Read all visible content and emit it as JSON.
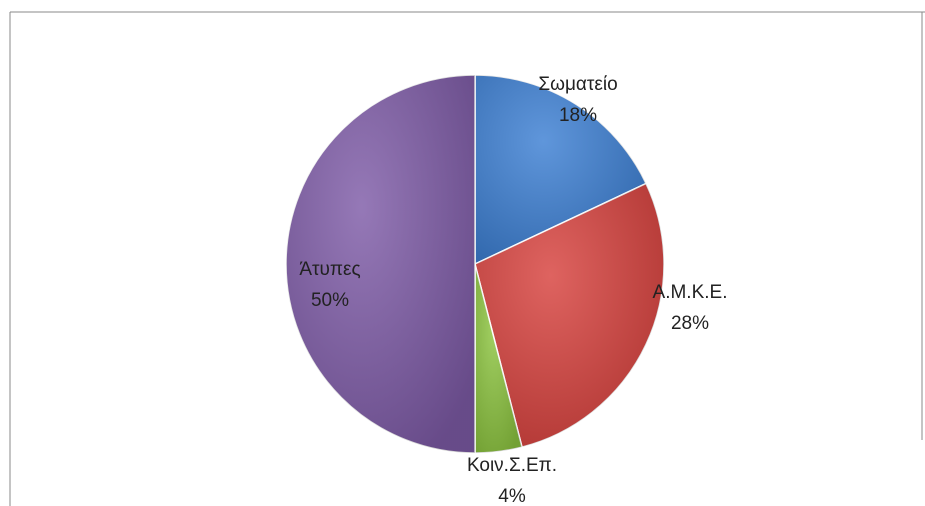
{
  "chart_data": {
    "type": "pie",
    "categories": [
      "Σωματείο",
      "Α.Μ.Κ.Ε.",
      "Κοιν.Σ.Επ.",
      "Άτυπες"
    ],
    "values": [
      18,
      28,
      4,
      50
    ],
    "value_labels": [
      "18%",
      "28%",
      "4%",
      "50%"
    ],
    "colors": [
      "#3c7fd3",
      "#d7413d",
      "#8cc43f",
      "#7e5ba7"
    ]
  }
}
